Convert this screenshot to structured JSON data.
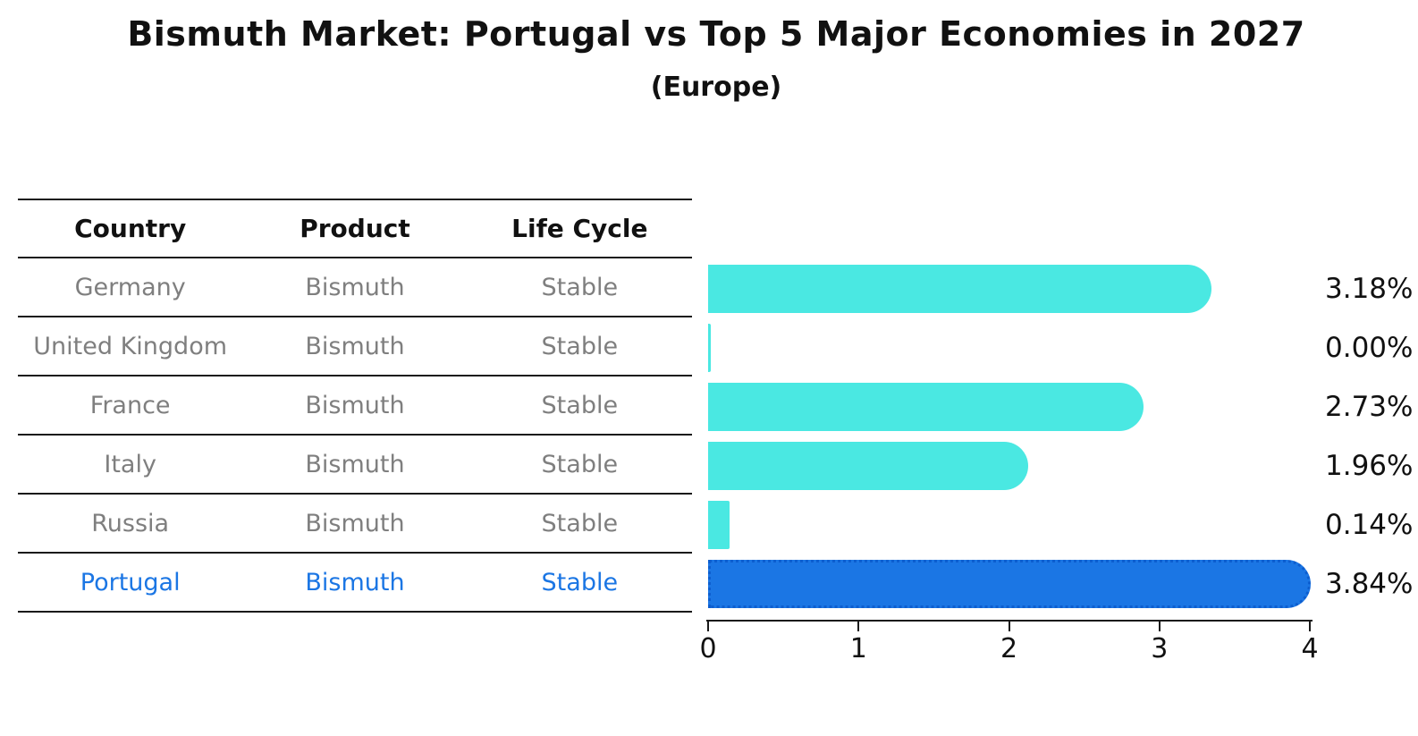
{
  "header": {
    "title": "Bismuth Market: Portugal vs Top 5 Major Economies in 2027",
    "subtitle": "(Europe)"
  },
  "table": {
    "headers": [
      "Country",
      "Product",
      "Life Cycle"
    ],
    "rows": [
      {
        "country": "Germany",
        "product": "Bismuth",
        "life_cycle": "Stable",
        "highlighted": false
      },
      {
        "country": "United Kingdom",
        "product": "Bismuth",
        "life_cycle": "Stable",
        "highlighted": false
      },
      {
        "country": "France",
        "product": "Bismuth",
        "life_cycle": "Stable",
        "highlighted": false
      },
      {
        "country": "Italy",
        "product": "Bismuth",
        "life_cycle": "Stable",
        "highlighted": false
      },
      {
        "country": "Russia",
        "product": "Bismuth",
        "life_cycle": "Stable",
        "highlighted": false
      },
      {
        "country": "Portugal",
        "product": "Bismuth",
        "life_cycle": "Stable",
        "highlighted": true
      }
    ]
  },
  "chart_data": {
    "type": "bar",
    "orientation": "horizontal",
    "title": "Bismuth Market: Portugal vs Top 5 Major Economies in 2027",
    "subtitle": "(Europe)",
    "categories": [
      "Germany",
      "United Kingdom",
      "France",
      "Italy",
      "Russia",
      "Portugal"
    ],
    "values": [
      3.18,
      0.0,
      2.73,
      1.96,
      0.14,
      3.84
    ],
    "value_labels": [
      "3.18%",
      "0.00%",
      "2.73%",
      "1.96%",
      "0.14%",
      "3.84%"
    ],
    "xlim": [
      0,
      4
    ],
    "x_ticks": [
      "0",
      "1",
      "2",
      "3",
      "4"
    ],
    "grid": false,
    "legend": "none",
    "highlight_category": "Portugal",
    "colors": {
      "bar": "#4AE8E2",
      "highlight_bar": "#1B76E4",
      "highlight_border": "#0D5ECF",
      "row_text": "#7f7f7f",
      "highlight_text": "#1B76E4",
      "axis_text": "#111111"
    }
  }
}
